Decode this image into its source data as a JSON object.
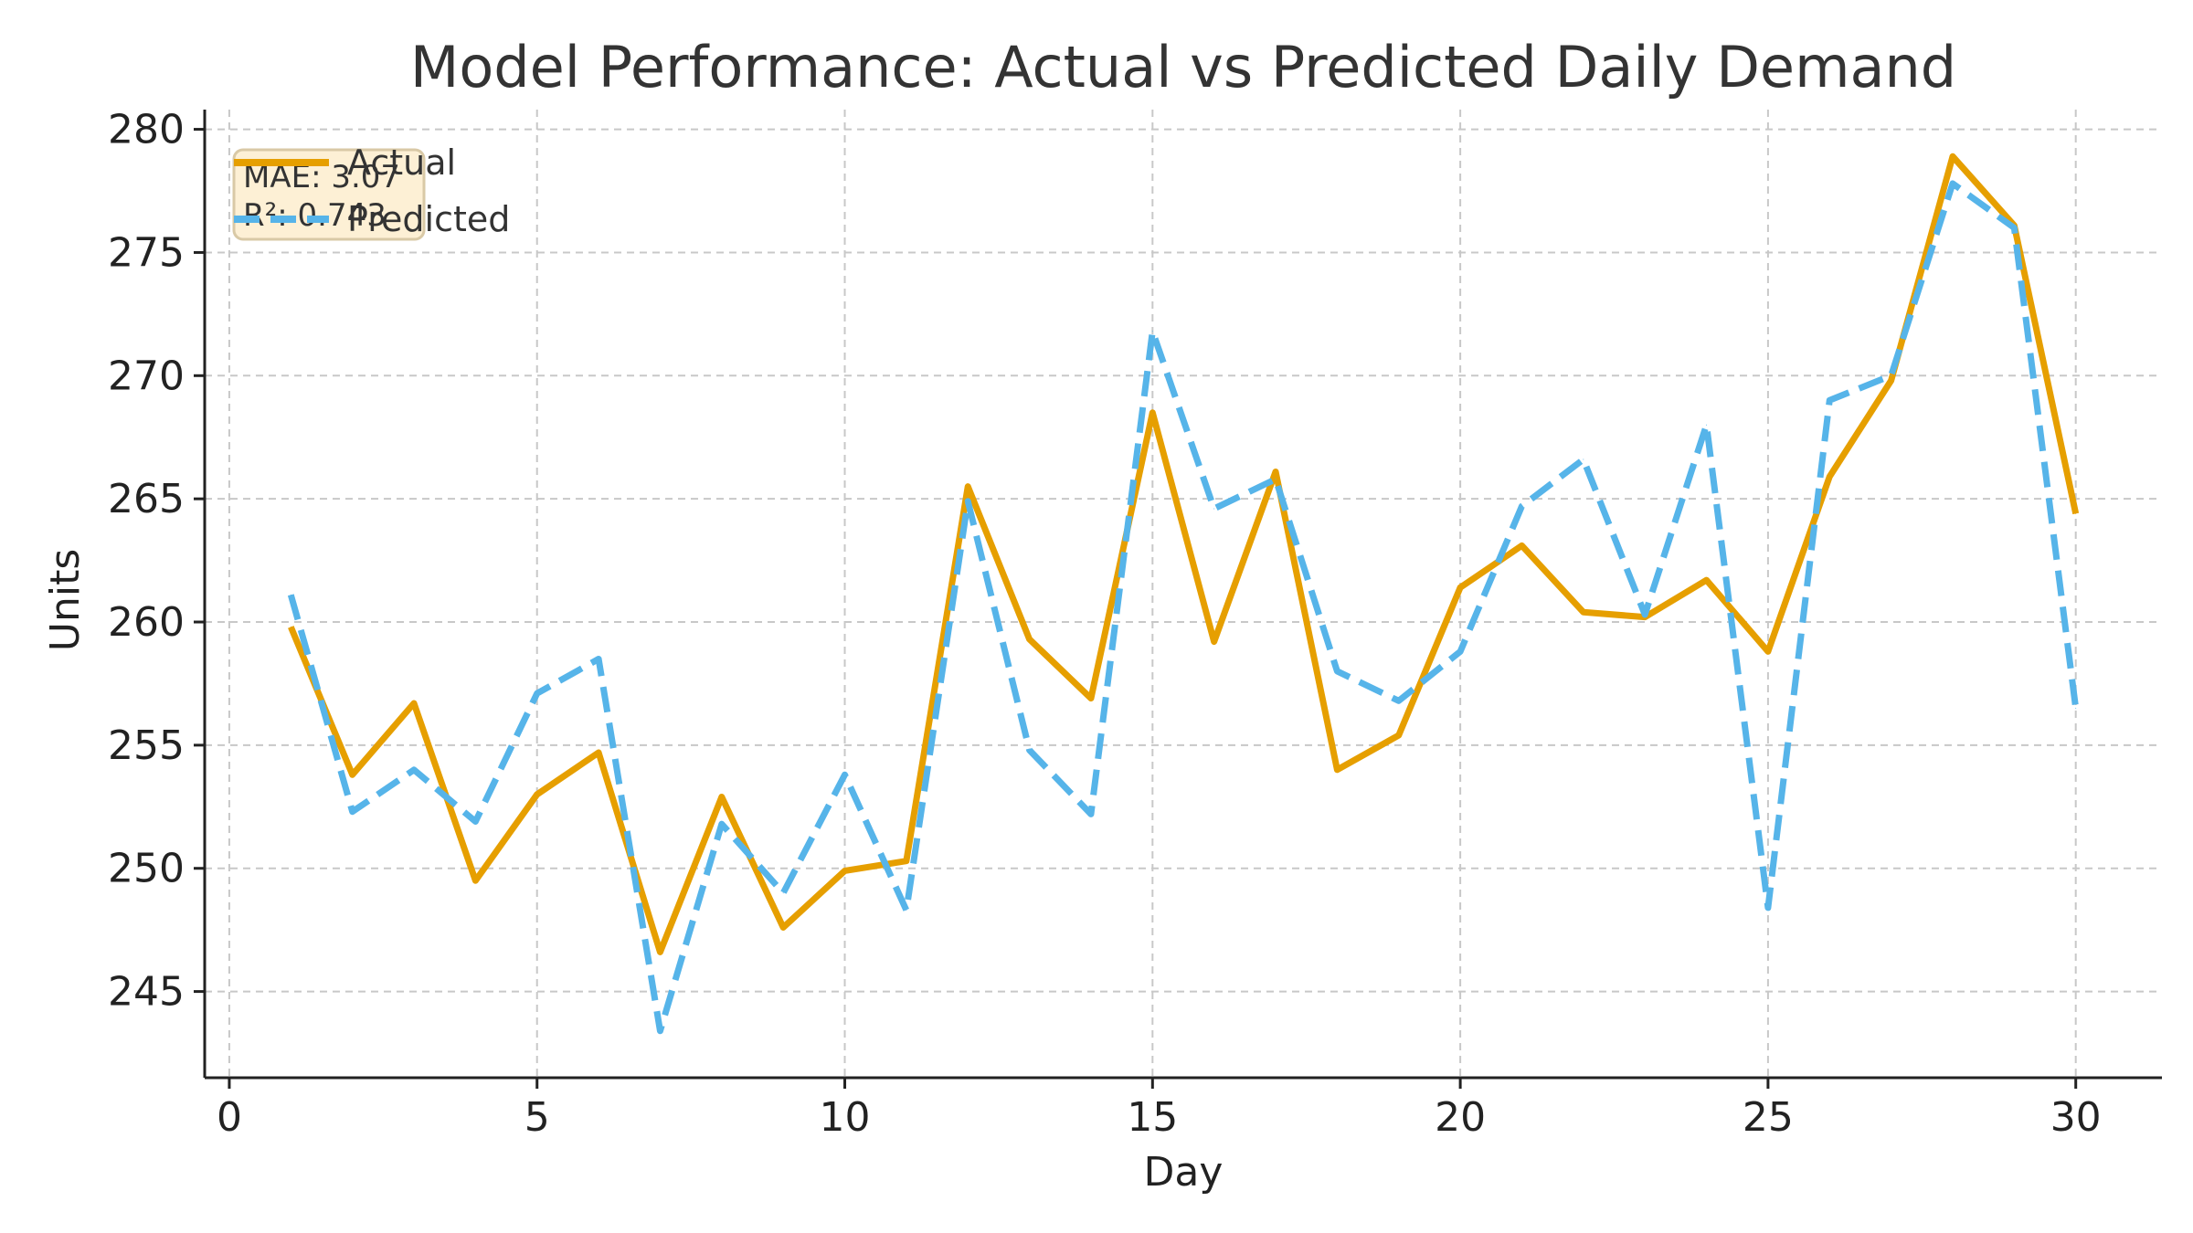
{
  "chart_data": {
    "type": "line",
    "title": "Model Performance: Actual vs Predicted Daily Demand",
    "xlabel": "Day",
    "ylabel": "Units",
    "xlim": [
      -0.4,
      31.4
    ],
    "ylim": [
      241.5,
      280.8
    ],
    "xticks": [
      0,
      5,
      10,
      15,
      20,
      25,
      30
    ],
    "yticks": [
      245,
      250,
      255,
      260,
      265,
      270,
      275,
      280
    ],
    "grid": true,
    "legend_position": "top-left",
    "x": [
      1,
      2,
      3,
      4,
      5,
      6,
      7,
      8,
      9,
      10,
      11,
      12,
      13,
      14,
      15,
      16,
      17,
      18,
      19,
      20,
      21,
      22,
      23,
      24,
      25,
      26,
      27,
      28,
      29,
      30
    ],
    "series": [
      {
        "name": "Actual",
        "color": "#E69F00",
        "style": "solid",
        "values": [
          259.8,
          253.8,
          256.7,
          249.5,
          253.0,
          254.7,
          246.6,
          252.9,
          247.6,
          249.9,
          250.3,
          265.5,
          259.3,
          256.9,
          268.5,
          259.2,
          266.1,
          254.0,
          255.4,
          261.4,
          263.1,
          260.4,
          260.2,
          261.7,
          258.8,
          265.9,
          269.8,
          278.9,
          276.1,
          264.4
        ]
      },
      {
        "name": "Predicted",
        "color": "#56B4E9",
        "style": "dashed",
        "values": [
          261.1,
          252.3,
          254.0,
          251.9,
          257.1,
          258.5,
          243.4,
          251.8,
          249.0,
          253.8,
          248.3,
          264.9,
          254.8,
          252.2,
          271.8,
          264.6,
          265.8,
          258.0,
          256.8,
          258.8,
          264.7,
          266.6,
          260.3,
          268.0,
          248.4,
          269.0,
          270.0,
          277.8,
          276.0,
          256.5
        ]
      }
    ],
    "annotation": {
      "lines": [
        "MAE: 3.07",
        "R²: 0.743"
      ],
      "background": "#FDF0D5",
      "border": "#D9C9A6"
    }
  }
}
